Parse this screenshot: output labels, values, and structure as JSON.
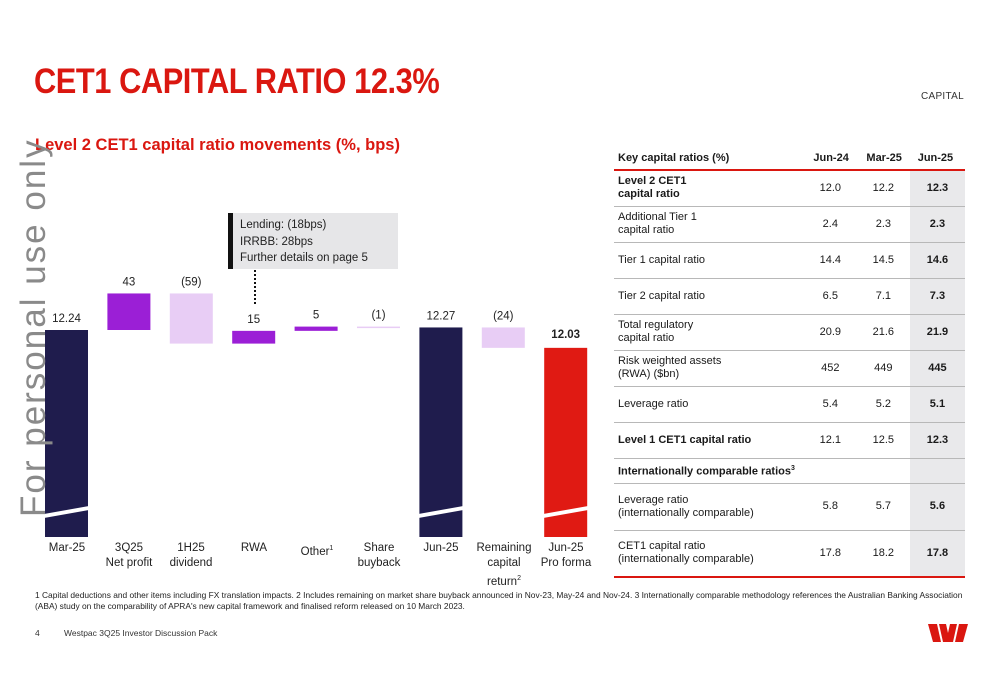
{
  "header": {
    "title": "CET1 CAPITAL RATIO 12.3%",
    "section": "CAPITAL",
    "subtitle": "Level 2 CET1 capital ratio movements (%, bps)"
  },
  "watermark": "For personal use only",
  "callout": {
    "lines": [
      "Lending: (18bps)",
      "IRRBB: 28bps",
      "Further details on page 5"
    ]
  },
  "chart_data": {
    "type": "bar",
    "subtype": "waterfall",
    "title": "Level 2 CET1 capital ratio movements (%, bps)",
    "units": "% (totals), bps (movements)",
    "categories": [
      "Mar-25",
      "3Q25 Net profit",
      "1H25 dividend",
      "RWA",
      "Other",
      "Share buyback",
      "Jun-25",
      "Remaining capital return",
      "Jun-25 Pro forma"
    ],
    "labels": [
      "12.24",
      "43",
      "(59)",
      "15",
      "5",
      "(1)",
      "12.27",
      "(24)",
      "12.03"
    ],
    "bars": [
      {
        "category": "Mar-25",
        "kind": "total",
        "value": 12.24
      },
      {
        "category": "3Q25 Net profit",
        "kind": "increase",
        "value": 43
      },
      {
        "category": "1H25 dividend",
        "kind": "decrease",
        "value": -59
      },
      {
        "category": "RWA",
        "kind": "increase",
        "value": 15
      },
      {
        "category": "Other",
        "kind": "increase",
        "value": 5
      },
      {
        "category": "Share buyback",
        "kind": "decrease",
        "value": -1
      },
      {
        "category": "Jun-25",
        "kind": "total",
        "value": 12.27
      },
      {
        "category": "Remaining capital return",
        "kind": "decrease",
        "value": -24
      },
      {
        "category": "Jun-25 Pro forma",
        "kind": "total",
        "value": 12.03
      }
    ],
    "colors": {
      "total": "#1f1c4d",
      "increase": "#9b1fd6",
      "decrease": "#e8cdf5",
      "pro_forma": "#e01a13"
    }
  },
  "categories": [
    {
      "line1": "Mar-25",
      "line2": "",
      "line3": ""
    },
    {
      "line1": "3Q25",
      "line2": "Net profit",
      "line3": ""
    },
    {
      "line1": "1H25",
      "line2": "dividend",
      "line3": ""
    },
    {
      "line1": "RWA",
      "line2": "",
      "line3": ""
    },
    {
      "line1": "Other",
      "sup": "1",
      "line2": "",
      "line3": ""
    },
    {
      "line1": "Share",
      "line2": "buyback",
      "line3": ""
    },
    {
      "line1": "Jun-25",
      "line2": "",
      "line3": ""
    },
    {
      "line1": "Remaining",
      "line2": "capital",
      "line3": "return",
      "sup3": "2"
    },
    {
      "line1": "Jun-25",
      "line2": "Pro forma",
      "line3": ""
    }
  ],
  "table": {
    "headers": [
      "Key capital ratios (%)",
      "Jun-24",
      "Mar-25",
      "Jun-25"
    ],
    "rows": [
      {
        "line1": "Level 2 CET1",
        "line2": "capital ratio",
        "jun24": "12.0",
        "mar25": "12.2",
        "jun25": "12.3"
      },
      {
        "line1": "Additional Tier 1",
        "line2": "capital ratio",
        "jun24": "2.4",
        "mar25": "2.3",
        "jun25": "2.3"
      },
      {
        "line1": "Tier 1 capital ratio",
        "line2": "",
        "jun24": "14.4",
        "mar25": "14.5",
        "jun25": "14.6"
      },
      {
        "line1": "Tier 2 capital ratio",
        "line2": "",
        "jun24": "6.5",
        "mar25": "7.1",
        "jun25": "7.3"
      },
      {
        "line1": "Total regulatory",
        "line2": "capital ratio",
        "jun24": "20.9",
        "mar25": "21.6",
        "jun25": "21.9"
      },
      {
        "line1": "Risk weighted assets",
        "line2": "(RWA) ($bn)",
        "jun24": "452",
        "mar25": "449",
        "jun25": "445"
      },
      {
        "line1": "Leverage ratio",
        "line2": "",
        "jun24": "5.4",
        "mar25": "5.2",
        "jun25": "5.1"
      },
      {
        "line1": "Level 1 CET1 capital ratio",
        "line2": "",
        "jun24": "12.1",
        "mar25": "12.5",
        "jun25": "12.3"
      }
    ],
    "section": {
      "label": "Internationally comparable ratios",
      "sup": "3"
    },
    "intl_rows": [
      {
        "line1": "Leverage ratio",
        "line2": "(internationally comparable)",
        "jun24": "5.8",
        "mar25": "5.7",
        "jun25": "5.6"
      },
      {
        "line1": "CET1 capital ratio",
        "line2": "(internationally comparable)",
        "jun24": "17.8",
        "mar25": "18.2",
        "jun25": "17.8"
      }
    ]
  },
  "footnotes": "1 Capital deductions and other items including FX translation impacts. 2 Includes remaining on market share buyback announced in Nov-23, May-24 and Nov-24. 3 Internationally comparable methodology references the Australian Banking Association (ABA) study on the comparability of APRA's new capital framework and finalised reform released on 10 March 2023.",
  "footer": {
    "page": "4",
    "document": "Westpac 3Q25 Investor Discussion Pack"
  }
}
